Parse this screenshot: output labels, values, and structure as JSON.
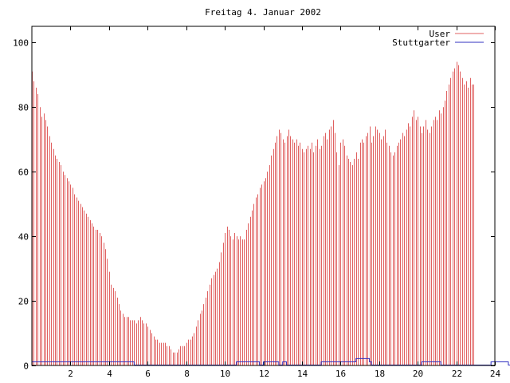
{
  "chart_data": {
    "type": "bar",
    "title": "Freitag 4. Januar 2002",
    "xlabel": "",
    "ylabel": "",
    "xlim": [
      0,
      24
    ],
    "ylim": [
      0,
      105
    ],
    "x_ticks": [
      2,
      4,
      6,
      8,
      10,
      12,
      14,
      16,
      18,
      20,
      22,
      24
    ],
    "y_ticks": [
      0,
      20,
      40,
      60,
      80,
      100
    ],
    "grid": false,
    "legend": "top-right",
    "bin_width_hours": 0.1,
    "series": [
      {
        "name": "User",
        "style": "impulse",
        "color": "#e06060",
        "values": [
          91,
          88,
          86,
          84,
          80,
          77,
          78,
          76,
          74,
          71,
          69,
          67,
          65,
          64,
          63,
          62,
          60,
          59,
          58,
          57,
          56,
          55,
          53,
          52,
          51,
          50,
          49,
          48,
          47,
          46,
          45,
          44,
          43,
          42,
          42,
          41,
          40,
          38,
          36,
          33,
          29,
          25,
          24,
          23,
          21,
          19,
          17,
          16,
          15,
          15,
          15,
          14,
          14,
          14,
          13,
          14,
          15,
          14,
          13,
          13,
          12,
          11,
          10,
          9,
          8,
          8,
          7,
          7,
          7,
          7,
          6,
          6,
          5,
          4,
          4,
          4,
          5,
          6,
          6,
          6,
          7,
          8,
          8,
          9,
          10,
          12,
          14,
          16,
          17,
          19,
          21,
          23,
          25,
          27,
          28,
          29,
          30,
          32,
          35,
          38,
          41,
          43,
          42,
          40,
          39,
          41,
          40,
          39,
          40,
          39,
          39,
          42,
          44,
          46,
          48,
          50,
          52,
          53,
          55,
          56,
          57,
          58,
          60,
          62,
          65,
          67,
          69,
          71,
          73,
          72,
          70,
          69,
          71,
          73,
          71,
          70,
          69,
          70,
          68,
          69,
          67,
          66,
          67,
          68,
          67,
          69,
          66,
          68,
          70,
          67,
          68,
          71,
          72,
          70,
          73,
          74,
          76,
          72,
          66,
          62,
          69,
          70,
          68,
          65,
          64,
          63,
          62,
          64,
          66,
          64,
          69,
          70,
          69,
          71,
          72,
          74,
          69,
          71,
          74,
          73,
          72,
          70,
          71,
          73,
          69,
          68,
          66,
          65,
          66,
          68,
          69,
          70,
          72,
          71,
          73,
          75,
          74,
          77,
          79,
          76,
          77,
          74,
          72,
          74,
          76,
          73,
          72,
          74,
          76,
          77,
          76,
          79,
          78,
          80,
          82,
          85,
          87,
          89,
          91,
          92,
          94,
          93,
          91,
          89,
          87,
          88,
          86,
          89,
          87,
          87
        ]
      },
      {
        "name": "Stuttgarter",
        "style": "line",
        "color": "#3030c0",
        "values": [
          1,
          1,
          1,
          1,
          1,
          1,
          1,
          1,
          1,
          1,
          1,
          1,
          1,
          1,
          1,
          1,
          1,
          1,
          1,
          1,
          1,
          1,
          1,
          1,
          1,
          1,
          1,
          1,
          1,
          1,
          1,
          1,
          1,
          1,
          1,
          1,
          1,
          1,
          1,
          1,
          1,
          1,
          1,
          1,
          1,
          1,
          1,
          1,
          1,
          1,
          1,
          1,
          1,
          0,
          0,
          0,
          0,
          0,
          0,
          0,
          0,
          0,
          0,
          0,
          0,
          0,
          0,
          0,
          0,
          0,
          0,
          0,
          0,
          0,
          0,
          0,
          0,
          0,
          0,
          0,
          0,
          0,
          0,
          0,
          0,
          0,
          0,
          0,
          0,
          0,
          0,
          0,
          0,
          0,
          0,
          0,
          0,
          0,
          0,
          0,
          0,
          0,
          0,
          0,
          0,
          0,
          1,
          1,
          1,
          1,
          1,
          1,
          1,
          1,
          1,
          1,
          1,
          1,
          0,
          0,
          1,
          1,
          1,
          1,
          1,
          1,
          1,
          1,
          0,
          0,
          1,
          1,
          0,
          0,
          0,
          0,
          0,
          0,
          0,
          0,
          0,
          0,
          0,
          0,
          0,
          0,
          0,
          0,
          0,
          0,
          1,
          1,
          1,
          1,
          1,
          1,
          1,
          1,
          1,
          1,
          1,
          1,
          1,
          1,
          1,
          1,
          1,
          1,
          2,
          2,
          2,
          2,
          2,
          2,
          2,
          1,
          0,
          0,
          0,
          0,
          0,
          0,
          0,
          0,
          0,
          0,
          0,
          0,
          0,
          0,
          0,
          0,
          0,
          0,
          0,
          0,
          0,
          0,
          0,
          0,
          0,
          0,
          1,
          1,
          1,
          1,
          1,
          1,
          1,
          1,
          1,
          1,
          0,
          0,
          0,
          0,
          0,
          0,
          0,
          0,
          0,
          0,
          0,
          0,
          0,
          0,
          0,
          0,
          0,
          0,
          0,
          0,
          0,
          0,
          0,
          0,
          0,
          0,
          1,
          1,
          1,
          1,
          1,
          1,
          1,
          1,
          1,
          0,
          0,
          0
        ]
      }
    ]
  }
}
